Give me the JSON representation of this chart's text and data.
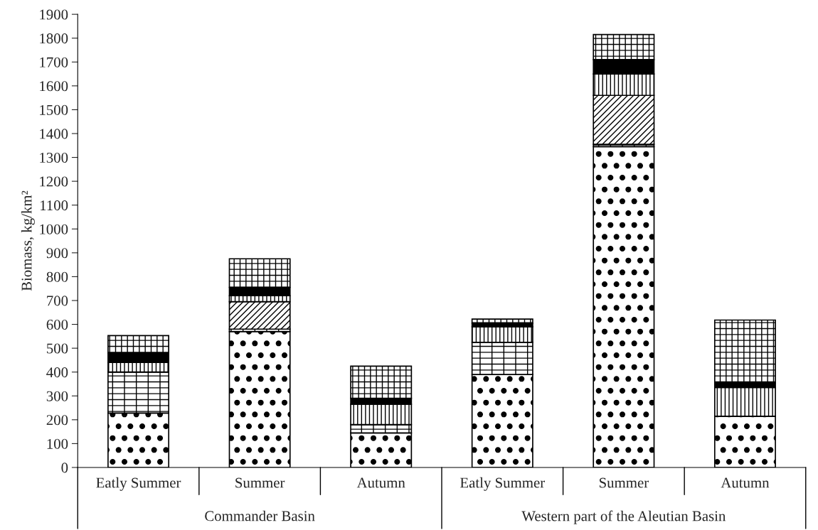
{
  "chart_data": {
    "type": "bar",
    "stacked": true,
    "ylabel": "Biomass, kg/km²",
    "categories": [
      "Eatly Summer",
      "Summer",
      "Autumn",
      "Eatly Summer",
      "Summer",
      "Autumn"
    ],
    "series": [
      {
        "color": "#000000",
        "values": [
          228,
          570,
          145,
          390,
          1345,
          215
        ]
      },
      {
        "color": "#000000",
        "values": [
          172,
          10,
          35,
          135,
          10,
          0
        ]
      },
      {
        "color": "#000000",
        "values": [
          0,
          115,
          0,
          0,
          205,
          0
        ]
      },
      {
        "color": "#000000",
        "values": [
          40,
          25,
          85,
          65,
          90,
          120
        ]
      },
      {
        "color": "#000000",
        "values": [
          40,
          35,
          25,
          15,
          60,
          20
        ]
      },
      {
        "color": "#000000",
        "values": [
          73,
          120,
          135,
          17,
          105,
          263
        ]
      }
    ],
    "annotations": [
      "Commander Basin",
      "Western part of the Aleutian Basin"
    ],
    "ylim": [
      0,
      1900
    ],
    "yticks": [
      0,
      100,
      200,
      300,
      400,
      500,
      600,
      700,
      800,
      900,
      1000,
      1100,
      1200,
      1300,
      1400,
      1500,
      1600,
      1700,
      1800,
      1900
    ],
    "grid": false,
    "legend": false
  }
}
